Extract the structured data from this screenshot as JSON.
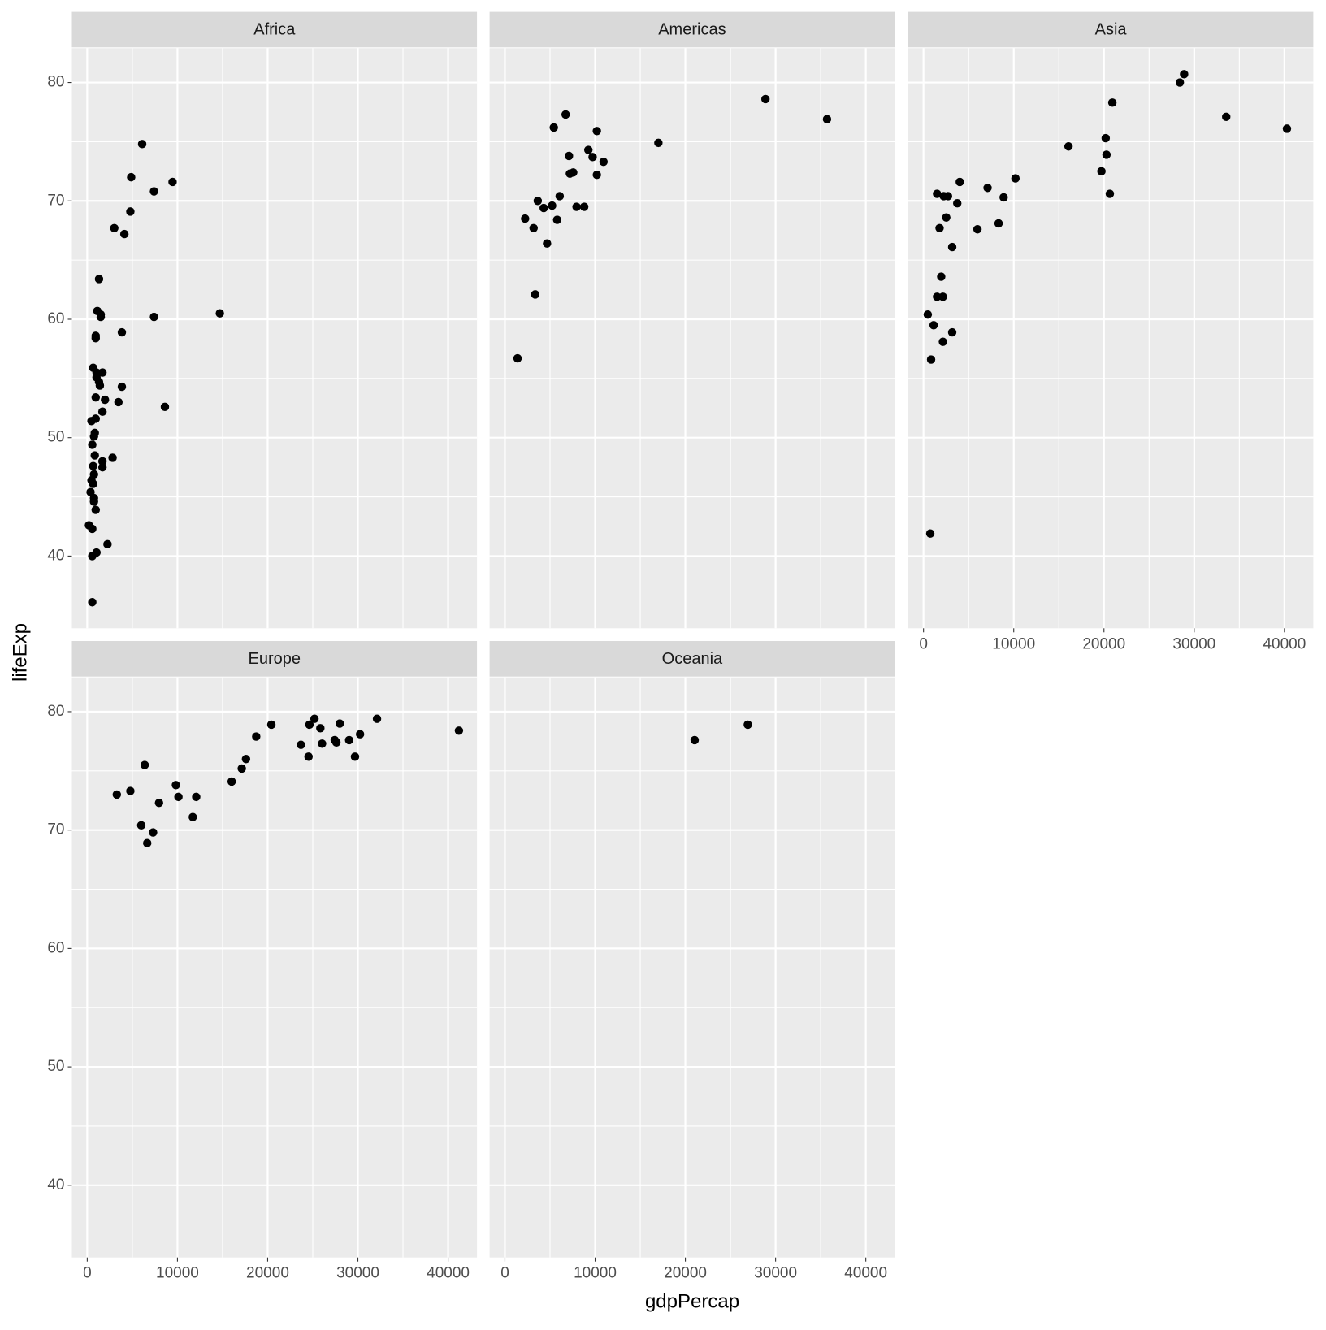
{
  "chart_data": {
    "type": "scatter",
    "x_label": "gdpPercap",
    "y_label": "lifeExp",
    "xlim": [
      -1700,
      43200
    ],
    "ylim": [
      33.9,
      82.9
    ],
    "xticks": [
      0,
      10000,
      20000,
      30000,
      40000
    ],
    "yticks": [
      40,
      50,
      60,
      70,
      80
    ],
    "grid": true,
    "color": "#000000",
    "facets": [
      {
        "name": "Africa",
        "x": [
          6090,
          4870,
          7400,
          9460,
          4780,
          3000,
          4120,
          1310,
          1120,
          1500,
          1500,
          7400,
          14700,
          940,
          940,
          3840,
          660,
          1030,
          1690,
          1030,
          1310,
          1400,
          3840,
          940,
          1970,
          3460,
          8610,
          1690,
          470,
          940,
          840,
          750,
          560,
          2810,
          1690,
          840,
          660,
          1690,
          750,
          470,
          660,
          370,
          750,
          750,
          940,
          190,
          560,
          2250,
          1030,
          560,
          560
        ],
        "y": [
          74.8,
          72.0,
          70.8,
          71.6,
          69.1,
          67.7,
          67.2,
          63.4,
          60.7,
          60.4,
          60.2,
          60.2,
          60.5,
          58.6,
          58.4,
          58.9,
          55.9,
          55.5,
          55.5,
          55.1,
          54.7,
          54.4,
          54.3,
          53.4,
          53.2,
          53.0,
          52.6,
          52.2,
          51.4,
          51.6,
          50.4,
          50.1,
          49.4,
          48.3,
          48.0,
          48.5,
          47.6,
          47.5,
          46.9,
          46.4,
          46.1,
          45.4,
          44.9,
          44.6,
          43.9,
          42.6,
          42.3,
          41.0,
          40.3,
          40.0,
          36.1
        ]
      },
      {
        "name": "Americas",
        "x": [
          1400,
          3360,
          2240,
          3180,
          3640,
          4300,
          5230,
          4670,
          5790,
          6070,
          5420,
          6730,
          7100,
          7200,
          7570,
          7940,
          8790,
          9250,
          9720,
          10190,
          10190,
          10930,
          17010,
          28880,
          35700
        ],
        "y": [
          56.7,
          62.1,
          68.5,
          67.7,
          70.0,
          69.4,
          69.6,
          66.4,
          68.4,
          70.4,
          76.2,
          77.3,
          73.8,
          72.3,
          72.4,
          69.5,
          69.5,
          74.3,
          73.7,
          75.9,
          72.2,
          73.3,
          74.9,
          78.6,
          76.9
        ]
      },
      {
        "name": "Asia",
        "x": [
          750,
          470,
          1120,
          840,
          2150,
          3180,
          1500,
          2150,
          1960,
          1780,
          1500,
          2240,
          2710,
          2520,
          3180,
          3740,
          4020,
          5980,
          7100,
          8320,
          8880,
          10190,
          16070,
          19720,
          20190,
          20280,
          20650,
          20930,
          28410,
          28880,
          33550,
          40280
        ],
        "y": [
          41.9,
          60.4,
          59.5,
          56.6,
          58.1,
          58.9,
          61.9,
          61.9,
          63.6,
          67.7,
          70.6,
          70.4,
          70.4,
          68.6,
          66.1,
          69.8,
          71.6,
          67.6,
          71.1,
          68.1,
          70.3,
          71.9,
          74.6,
          72.5,
          75.3,
          73.9,
          70.6,
          78.3,
          80.0,
          80.7,
          77.1,
          76.1
        ]
      },
      {
        "name": "Europe",
        "x": [
          3280,
          4780,
          6370,
          5990,
          6650,
          7300,
          7960,
          9830,
          10110,
          11700,
          12080,
          16010,
          17130,
          17600,
          18730,
          20410,
          23690,
          24530,
          24630,
          25190,
          25840,
          26030,
          27430,
          27620,
          27990,
          29030,
          29680,
          30240,
          32120,
          41200
        ],
        "y": [
          73.0,
          73.3,
          75.5,
          70.4,
          68.9,
          69.8,
          72.3,
          73.8,
          72.8,
          71.1,
          72.8,
          74.1,
          75.2,
          76.0,
          77.9,
          78.9,
          77.2,
          76.2,
          78.9,
          79.4,
          78.6,
          77.3,
          77.6,
          77.4,
          79.0,
          77.6,
          76.2,
          78.1,
          79.4,
          78.4
        ]
      },
      {
        "name": "Oceania",
        "x": [
          21030,
          26920
        ],
        "y": [
          77.6,
          78.9
        ]
      }
    ]
  }
}
